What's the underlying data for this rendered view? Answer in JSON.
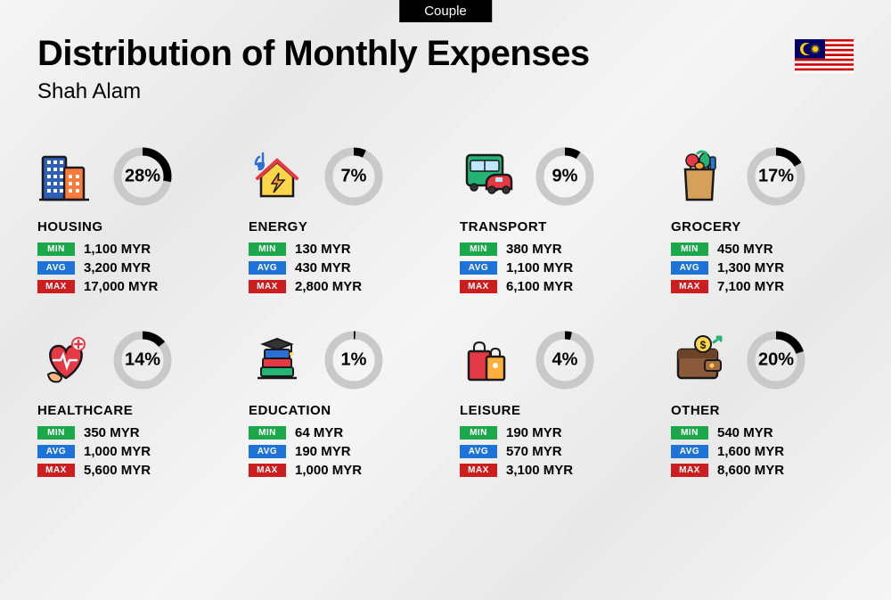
{
  "tag": "Couple",
  "title": "Distribution of Monthly Expenses",
  "subtitle": "Shah Alam",
  "currency": "MYR",
  "colors": {
    "min": "#1ba84a",
    "avg": "#1e73d8",
    "max": "#cc1e1e",
    "ring_track": "#c9c9c9",
    "ring_fill": "#000000",
    "background": "#f2f2f2",
    "tag_bg": "#000000",
    "tag_fg": "#ffffff",
    "text": "#000000"
  },
  "labels": {
    "min": "MIN",
    "avg": "AVG",
    "max": "MAX"
  },
  "ring": {
    "size": 72,
    "stroke": 9,
    "radius": 28
  },
  "flag": {
    "star_color": "#ffd100",
    "canton": "#010066",
    "stripe_red": "#cc0001",
    "stripe_white": "#ffffff"
  },
  "categories": [
    {
      "id": "housing",
      "name": "HOUSING",
      "pct": 28,
      "min": "1,100",
      "avg": "3,200",
      "max": "17,000",
      "icon": "buildings"
    },
    {
      "id": "energy",
      "name": "ENERGY",
      "pct": 7,
      "min": "130",
      "avg": "430",
      "max": "2,800",
      "icon": "energy-house"
    },
    {
      "id": "transport",
      "name": "TRANSPORT",
      "pct": 9,
      "min": "380",
      "avg": "1,100",
      "max": "6,100",
      "icon": "bus-car"
    },
    {
      "id": "grocery",
      "name": "GROCERY",
      "pct": 17,
      "min": "450",
      "avg": "1,300",
      "max": "7,100",
      "icon": "grocery-bag"
    },
    {
      "id": "healthcare",
      "name": "HEALTHCARE",
      "pct": 14,
      "min": "350",
      "avg": "1,000",
      "max": "5,600",
      "icon": "health-heart"
    },
    {
      "id": "education",
      "name": "EDUCATION",
      "pct": 1,
      "min": "64",
      "avg": "190",
      "max": "1,000",
      "icon": "grad-books"
    },
    {
      "id": "leisure",
      "name": "LEISURE",
      "pct": 4,
      "min": "190",
      "avg": "570",
      "max": "3,100",
      "icon": "shopping-bags"
    },
    {
      "id": "other",
      "name": "OTHER",
      "pct": 20,
      "min": "540",
      "avg": "1,600",
      "max": "8,600",
      "icon": "wallet"
    }
  ]
}
